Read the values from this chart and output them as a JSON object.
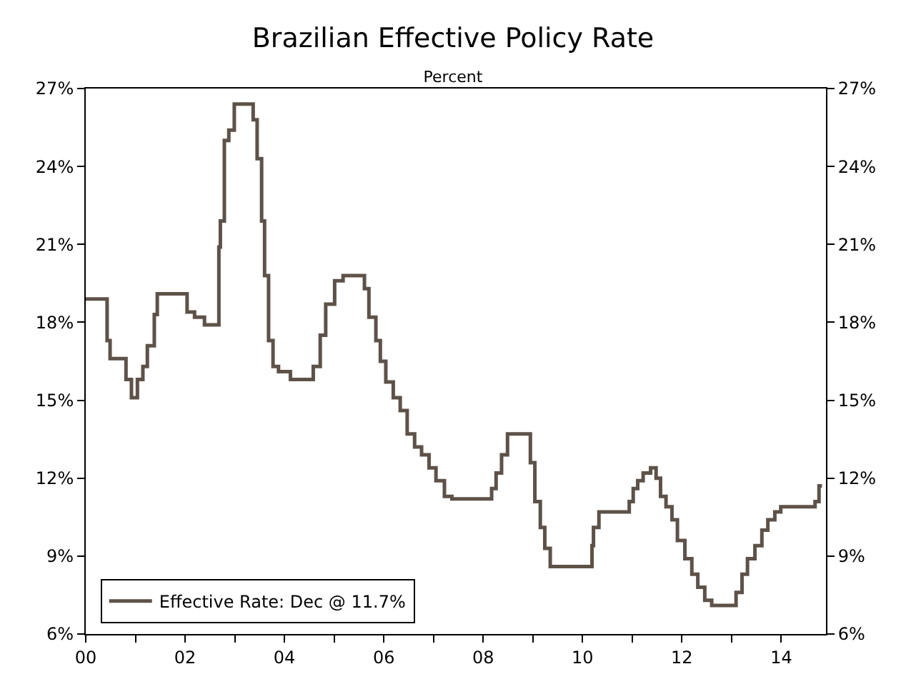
{
  "chart_data": {
    "type": "step",
    "title": "Brazilian Effective Policy Rate",
    "subtitle": "Percent",
    "series": [
      {
        "name": "Effective Rate: Dec @ 11.7%",
        "color": "#5e5248",
        "x": [
          2000,
          2000.43,
          2000.49,
          2000.81,
          2000.92,
          2001.04,
          2001.15,
          2001.24,
          2001.38,
          2001.44,
          2001.5,
          2002.04,
          2002.19,
          2002.39,
          2002.47,
          2002.68,
          2002.71,
          2002.79,
          2002.88,
          2002.99,
          2003.08,
          2003.37,
          2003.45,
          2003.54,
          2003.6,
          2003.68,
          2003.77,
          2003.88,
          2004.12,
          2004.26,
          2004.58,
          2004.72,
          2004.83,
          2005.01,
          2005.18,
          2005.29,
          2005.61,
          2005.7,
          2005.84,
          2005.93,
          2006.04,
          2006.19,
          2006.33,
          2006.47,
          2006.62,
          2006.76,
          2006.91,
          2007.05,
          2007.22,
          2007.37,
          2007.54,
          2008.17,
          2008.26,
          2008.37,
          2008.49,
          2008.6,
          2008.95,
          2009.04,
          2009.15,
          2009.24,
          2009.35,
          2009.44,
          2010.19,
          2010.22,
          2010.33,
          2010.45,
          2010.94,
          2011.02,
          2011.11,
          2011.22,
          2011.37,
          2011.48,
          2011.57,
          2011.68,
          2011.8,
          2011.91,
          2012.06,
          2012.2,
          2012.32,
          2012.46,
          2012.6,
          2012.75,
          2013.09,
          2013.21,
          2013.32,
          2013.47,
          2013.61,
          2013.73,
          2013.87,
          2013.99,
          2014.13,
          2014.68,
          2014.76,
          2014.82
        ],
        "values": [
          18.9,
          17.3,
          16.6,
          15.8,
          15.1,
          15.8,
          16.3,
          17.1,
          18.3,
          19.1,
          19.1,
          18.4,
          18.2,
          17.9,
          17.9,
          20.9,
          21.9,
          25.0,
          25.4,
          26.4,
          26.4,
          25.8,
          24.3,
          21.9,
          19.8,
          17.3,
          16.3,
          16.1,
          15.8,
          15.8,
          16.3,
          17.5,
          18.7,
          19.6,
          19.8,
          19.8,
          19.3,
          18.2,
          17.3,
          16.5,
          15.7,
          15.1,
          14.6,
          13.7,
          13.2,
          12.9,
          12.4,
          11.9,
          11.3,
          11.2,
          11.2,
          11.6,
          12.2,
          12.9,
          13.7,
          13.7,
          12.6,
          11.1,
          10.1,
          9.3,
          8.6,
          8.6,
          9.4,
          10.1,
          10.7,
          10.7,
          11.1,
          11.6,
          11.9,
          12.2,
          12.4,
          12.0,
          11.3,
          10.9,
          10.4,
          9.6,
          8.9,
          8.3,
          7.8,
          7.3,
          7.1,
          7.1,
          7.6,
          8.3,
          8.9,
          9.4,
          10.0,
          10.4,
          10.7,
          10.9,
          10.9,
          11.1,
          11.7,
          11.7
        ]
      }
    ],
    "xlim": [
      2000,
      2014.9
    ],
    "xticks": [
      {
        "value": 2000,
        "label": "00"
      },
      {
        "value": 2001,
        "label": null
      },
      {
        "value": 2002,
        "label": "02"
      },
      {
        "value": 2003,
        "label": null
      },
      {
        "value": 2004,
        "label": "04"
      },
      {
        "value": 2005,
        "label": null
      },
      {
        "value": 2006,
        "label": "06"
      },
      {
        "value": 2007,
        "label": null
      },
      {
        "value": 2008,
        "label": "08"
      },
      {
        "value": 2009,
        "label": null
      },
      {
        "value": 2010,
        "label": "10"
      },
      {
        "value": 2011,
        "label": null
      },
      {
        "value": 2012,
        "label": "12"
      },
      {
        "value": 2013,
        "label": null
      },
      {
        "value": 2014,
        "label": "14"
      }
    ],
    "ylim": [
      6,
      27
    ],
    "yticks": [
      {
        "value": 6,
        "label": "6%"
      },
      {
        "value": 9,
        "label": "9%"
      },
      {
        "value": 12,
        "label": "12%"
      },
      {
        "value": 15,
        "label": "15%"
      },
      {
        "value": 18,
        "label": "18%"
      },
      {
        "value": 21,
        "label": "21%"
      },
      {
        "value": 24,
        "label": "24%"
      },
      {
        "value": 27,
        "label": "27%"
      }
    ],
    "y2lim": [
      6,
      27
    ],
    "y2ticks": [
      {
        "value": 6,
        "label": "6%"
      },
      {
        "value": 9,
        "label": "9%"
      },
      {
        "value": 12,
        "label": "12%"
      },
      {
        "value": 15,
        "label": "15%"
      },
      {
        "value": 18,
        "label": "18%"
      },
      {
        "value": 21,
        "label": "21%"
      },
      {
        "value": 24,
        "label": "24%"
      },
      {
        "value": 27,
        "label": "27%"
      }
    ],
    "grid": false,
    "legend": "bottom left",
    "marker": "none",
    "line_style": "solid"
  }
}
